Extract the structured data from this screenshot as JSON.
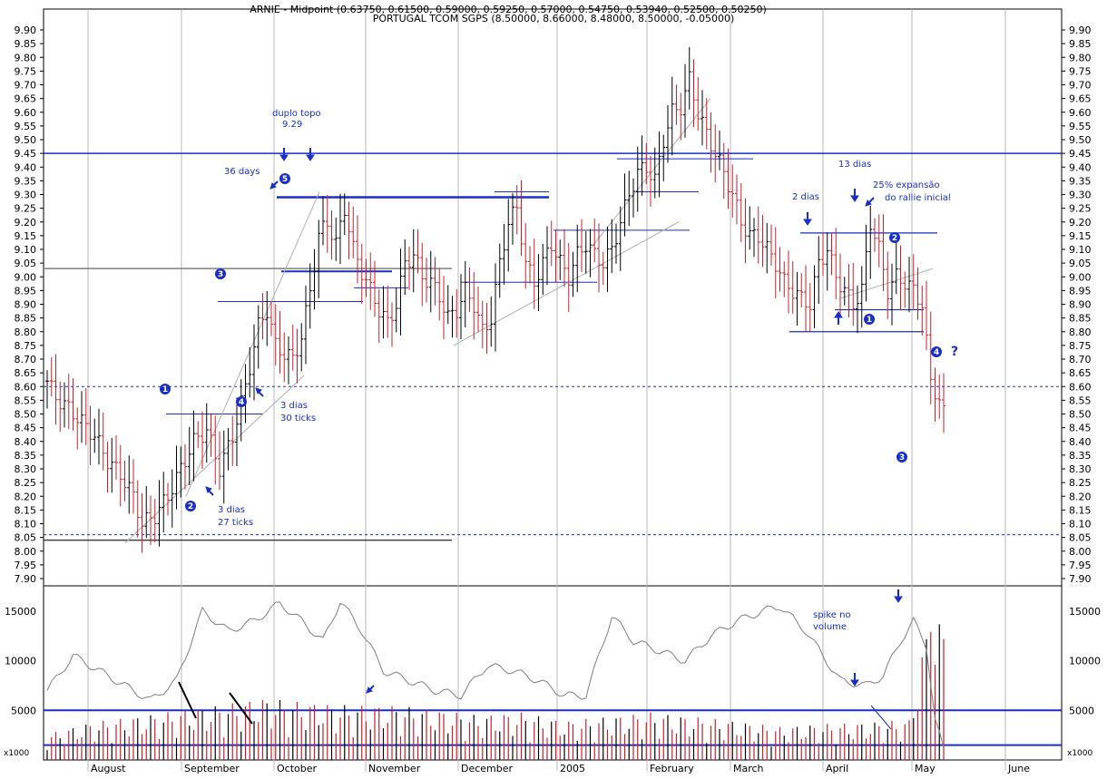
{
  "chart_data": {
    "type": "bar",
    "subtype": "ohlc",
    "indicator_line": "ARNIE - Midpoint (0.63750, 0.61500, 0.59000, 0.59250, 0.57000, 0.54750, 0.53940, 0.52500, 0.50250)",
    "title": "PORTUGAL TCOM SGPS (8.50000, 8.66000, 8.48000, 8.50000, -0.05000)",
    "months": [
      "August",
      "September",
      "October",
      "November",
      "December",
      "2005",
      "February",
      "March",
      "April",
      "May",
      "June"
    ],
    "price_axis": {
      "min": 7.9,
      "max": 9.9,
      "ticks": [
        "9.90",
        "9.85",
        "9.80",
        "9.75",
        "9.70",
        "9.65",
        "9.60",
        "9.55",
        "9.50",
        "9.45",
        "9.40",
        "9.35",
        "9.30",
        "9.25",
        "9.20",
        "9.15",
        "9.10",
        "9.05",
        "9.00",
        "8.95",
        "8.90",
        "8.85",
        "8.80",
        "8.75",
        "8.70",
        "8.65",
        "8.60",
        "8.55",
        "8.50",
        "8.45",
        "8.40",
        "8.35",
        "8.30",
        "8.25",
        "8.20",
        "8.15",
        "8.10",
        "8.05",
        "8.00",
        "7.95",
        "7.90"
      ]
    },
    "volume_axis": {
      "min": 0,
      "max": 17000,
      "ticks": [
        "15000",
        "10000",
        "5000"
      ],
      "unit_label": "x1000"
    },
    "reference_lines": {
      "resistance": 9.45,
      "support_dashed_upper": 8.6,
      "support_dashed_lower": 8.06,
      "grey_level": 9.03,
      "volume_levels": [
        5000,
        1500
      ]
    },
    "price_waypoints": [
      [
        0,
        8.62
      ],
      [
        2,
        8.56
      ],
      [
        5,
        8.52
      ],
      [
        8,
        8.47
      ],
      [
        11,
        8.42
      ],
      [
        14,
        8.33
      ],
      [
        17,
        8.28
      ],
      [
        20,
        8.2
      ],
      [
        22,
        8.1
      ],
      [
        25,
        8.13
      ],
      [
        28,
        8.2
      ],
      [
        31,
        8.3
      ],
      [
        34,
        8.4
      ],
      [
        37,
        8.44
      ],
      [
        40,
        8.3
      ],
      [
        43,
        8.42
      ],
      [
        46,
        8.6
      ],
      [
        49,
        8.82
      ],
      [
        51,
        8.88
      ],
      [
        53,
        8.75
      ],
      [
        55,
        8.72
      ],
      [
        57,
        8.7
      ],
      [
        59,
        8.78
      ],
      [
        61,
        8.95
      ],
      [
        63,
        9.15
      ],
      [
        65,
        9.2
      ],
      [
        67,
        9.12
      ],
      [
        69,
        9.25
      ],
      [
        71,
        9.1
      ],
      [
        73,
        9.02
      ],
      [
        75,
        8.95
      ],
      [
        77,
        8.88
      ],
      [
        79,
        8.83
      ],
      [
        81,
        8.9
      ],
      [
        83,
        9.05
      ],
      [
        85,
        9.08
      ],
      [
        87,
        9.0
      ],
      [
        89,
        8.98
      ],
      [
        91,
        8.93
      ],
      [
        93,
        8.85
      ],
      [
        95,
        8.88
      ],
      [
        97,
        8.95
      ],
      [
        99,
        8.9
      ],
      [
        101,
        8.8
      ],
      [
        103,
        8.85
      ],
      [
        105,
        9.05
      ],
      [
        107,
        9.2
      ],
      [
        109,
        9.25
      ],
      [
        111,
        9.05
      ],
      [
        113,
        8.98
      ],
      [
        115,
        9.05
      ],
      [
        117,
        9.12
      ],
      [
        119,
        9.05
      ],
      [
        121,
        9.0
      ],
      [
        123,
        9.08
      ],
      [
        125,
        9.12
      ],
      [
        127,
        9.08
      ],
      [
        129,
        9.05
      ],
      [
        131,
        9.1
      ],
      [
        133,
        9.2
      ],
      [
        135,
        9.3
      ],
      [
        137,
        9.38
      ],
      [
        139,
        9.4
      ],
      [
        141,
        9.35
      ],
      [
        143,
        9.5
      ],
      [
        145,
        9.6
      ],
      [
        147,
        9.62
      ],
      [
        149,
        9.72
      ],
      [
        151,
        9.6
      ],
      [
        153,
        9.52
      ],
      [
        155,
        9.45
      ],
      [
        157,
        9.38
      ],
      [
        159,
        9.3
      ],
      [
        161,
        9.2
      ],
      [
        163,
        9.15
      ],
      [
        165,
        9.15
      ],
      [
        167,
        9.1
      ],
      [
        169,
        9.05
      ],
      [
        171,
        8.98
      ],
      [
        173,
        8.95
      ],
      [
        175,
        8.92
      ],
      [
        177,
        8.9
      ],
      [
        179,
        9.05
      ],
      [
        181,
        9.1
      ],
      [
        183,
        9.0
      ],
      [
        185,
        8.95
      ],
      [
        187,
        8.9
      ],
      [
        189,
        8.95
      ],
      [
        191,
        9.2
      ],
      [
        193,
        9.1
      ],
      [
        195,
        8.95
      ],
      [
        197,
        9.0
      ],
      [
        199,
        8.98
      ],
      [
        201,
        8.95
      ],
      [
        203,
        8.9
      ],
      [
        205,
        8.62
      ],
      [
        207,
        8.55
      ],
      [
        208,
        8.5
      ]
    ],
    "volume_waypoints": [
      [
        0,
        1800
      ],
      [
        10,
        2600
      ],
      [
        20,
        3000
      ],
      [
        30,
        3400
      ],
      [
        40,
        3800
      ],
      [
        50,
        4300
      ],
      [
        60,
        4000
      ],
      [
        70,
        3800
      ],
      [
        80,
        3800
      ],
      [
        90,
        3500
      ],
      [
        100,
        3100
      ],
      [
        110,
        3300
      ],
      [
        120,
        2700
      ],
      [
        130,
        3000
      ],
      [
        140,
        3300
      ],
      [
        150,
        3000
      ],
      [
        160,
        2700
      ],
      [
        170,
        2300
      ],
      [
        180,
        2500
      ],
      [
        190,
        2600
      ],
      [
        200,
        2800
      ],
      [
        204,
        9000
      ],
      [
        205,
        16500
      ],
      [
        206,
        9200
      ],
      [
        208,
        9800
      ]
    ],
    "volume_avg_waypoints": [
      [
        0,
        7000
      ],
      [
        6,
        10500
      ],
      [
        12,
        9000
      ],
      [
        18,
        7500
      ],
      [
        24,
        6000
      ],
      [
        30,
        8000
      ],
      [
        36,
        15000
      ],
      [
        42,
        13000
      ],
      [
        48,
        14000
      ],
      [
        54,
        15800
      ],
      [
        59,
        14000
      ],
      [
        64,
        12000
      ],
      [
        68,
        16000
      ],
      [
        73,
        13000
      ],
      [
        78,
        9000
      ],
      [
        84,
        8000
      ],
      [
        90,
        7000
      ],
      [
        96,
        6500
      ],
      [
        102,
        9500
      ],
      [
        108,
        9000
      ],
      [
        114,
        8000
      ],
      [
        120,
        6500
      ],
      [
        125,
        6500
      ],
      [
        131,
        14500
      ],
      [
        136,
        12000
      ],
      [
        142,
        11000
      ],
      [
        148,
        10000
      ],
      [
        154,
        12500
      ],
      [
        160,
        14000
      ],
      [
        166,
        15000
      ],
      [
        170,
        15500
      ],
      [
        176,
        13000
      ],
      [
        180,
        10500
      ],
      [
        184,
        8000
      ],
      [
        190,
        7500
      ],
      [
        194,
        8500
      ],
      [
        198,
        12000
      ],
      [
        201,
        14000
      ],
      [
        204,
        11500
      ],
      [
        206,
        4000
      ],
      [
        208,
        1000
      ]
    ]
  },
  "annotations": {
    "duplo_topo": "duplo topo",
    "duplo_topo_val": "9.29",
    "days36": "36 days",
    "dias13": "13 dias",
    "dias2": "2 dias",
    "expansao1": "25% expansão",
    "expansao2": "do rallie inicial",
    "tres_dias_a": "3 dias",
    "ticks30": "30 ticks",
    "tres_dias_b": "3 dias",
    "ticks27": "27 ticks",
    "spike1": "spike no",
    "spike2": "volume",
    "question": "?",
    "n1": "1",
    "n2": "2",
    "n3": "3",
    "n4": "4",
    "n5": "5"
  },
  "colors": {
    "down": "#c8202a",
    "up": "#000000",
    "annotation": "#1a2ec8",
    "trend": "#b0b0b0",
    "volume_avg": "#808080"
  }
}
